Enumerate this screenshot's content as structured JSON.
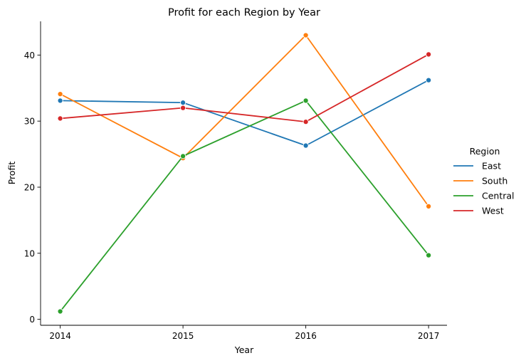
{
  "chart_data": {
    "type": "line",
    "title": "Profit for each Region by Year",
    "xlabel": "Year",
    "ylabel": "Profit",
    "x": [
      2014,
      2015,
      2016,
      2017
    ],
    "x_tick_labels": [
      "2014",
      "2015",
      "2016",
      "2017"
    ],
    "y_ticks": [
      0,
      10,
      20,
      30,
      40
    ],
    "y_tick_labels": [
      "0",
      "10",
      "20",
      "30",
      "40"
    ],
    "xlim": [
      2013.84,
      2017.15
    ],
    "ylim": [
      -0.9,
      45.1
    ],
    "grid": false,
    "legend_title": "Region",
    "legend_position": "right",
    "series": [
      {
        "name": "East",
        "color": "#1f77b4",
        "values": [
          33.1,
          32.8,
          26.3,
          36.2
        ]
      },
      {
        "name": "South",
        "color": "#ff7f0e",
        "values": [
          34.1,
          24.4,
          43.0,
          17.1
        ]
      },
      {
        "name": "Central",
        "color": "#2ca02c",
        "values": [
          1.2,
          24.7,
          33.1,
          9.7
        ]
      },
      {
        "name": "West",
        "color": "#d62728",
        "values": [
          30.4,
          32.0,
          29.9,
          40.1
        ]
      }
    ]
  }
}
